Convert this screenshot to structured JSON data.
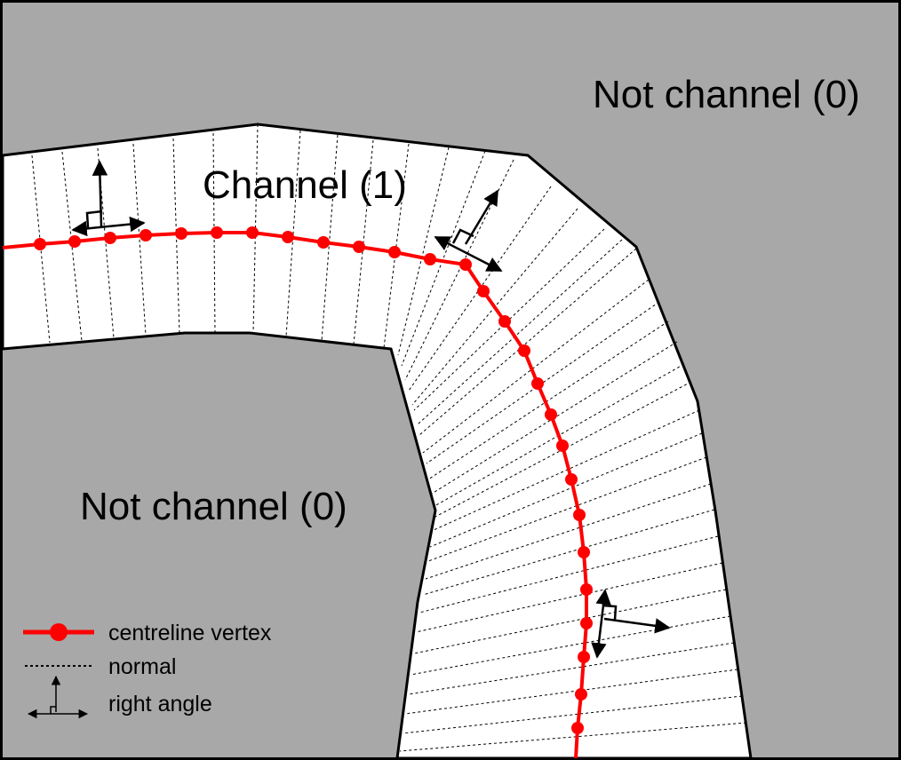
{
  "regions": {
    "not_channel_top": "Not channel (0)",
    "channel": "Channel (1)",
    "not_channel_left": "Not channel (0)"
  },
  "legend": {
    "centreline": "centreline vertex",
    "normal": "normal",
    "right_angle": "right angle"
  },
  "colors": {
    "not_channel_fill": "#a8a8a8",
    "channel_fill": "#ffffff",
    "centreline": "#ff0000",
    "outline": "#000000"
  },
  "icons": {
    "vertex": "red-dot-icon",
    "normal": "dashed-line-icon",
    "right_angle": "right-angle-arrow-icon"
  }
}
